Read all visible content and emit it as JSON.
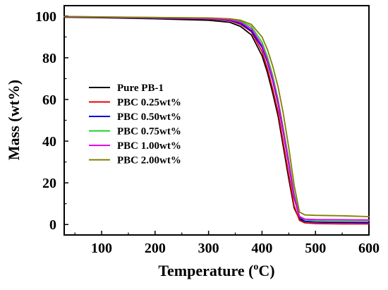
{
  "chart_data": {
    "type": "line",
    "title": "",
    "xlabel": "Temperature (",
    "xlabel_sup": "o",
    "xlabel_unit": "C)",
    "ylabel": "Mass (wt%)",
    "xlim": [
      30,
      600
    ],
    "ylim": [
      -5,
      105
    ],
    "xticks": [
      100,
      200,
      300,
      400,
      500,
      600
    ],
    "yticks": [
      0,
      20,
      40,
      60,
      80,
      100
    ],
    "grid": false,
    "legend_position": "center-left",
    "series": [
      {
        "name": "Pure PB-1",
        "color": "#000000",
        "points": [
          [
            30,
            99.5
          ],
          [
            100,
            99.2
          ],
          [
            200,
            98.7
          ],
          [
            300,
            98.0
          ],
          [
            340,
            97.0
          ],
          [
            360,
            95.0
          ],
          [
            380,
            91.0
          ],
          [
            400,
            81.0
          ],
          [
            410,
            73.0
          ],
          [
            420,
            63.0
          ],
          [
            430,
            52.0
          ],
          [
            440,
            37.0
          ],
          [
            450,
            22.0
          ],
          [
            460,
            8.0
          ],
          [
            470,
            2.5
          ],
          [
            480,
            1.5
          ],
          [
            500,
            1.2
          ],
          [
            550,
            1.0
          ],
          [
            600,
            1.0
          ]
        ]
      },
      {
        "name": "PBC 0.25wt%",
        "color": "#e8000b",
        "points": [
          [
            30,
            99.7
          ],
          [
            100,
            99.4
          ],
          [
            200,
            99.0
          ],
          [
            300,
            98.6
          ],
          [
            340,
            97.8
          ],
          [
            360,
            96.0
          ],
          [
            380,
            92.5
          ],
          [
            400,
            83.0
          ],
          [
            410,
            75.0
          ],
          [
            420,
            65.0
          ],
          [
            430,
            54.0
          ],
          [
            440,
            39.0
          ],
          [
            450,
            24.0
          ],
          [
            460,
            9.0
          ],
          [
            470,
            2.0
          ],
          [
            480,
            0.8
          ],
          [
            500,
            0.5
          ],
          [
            550,
            0.3
          ],
          [
            600,
            0.3
          ]
        ]
      },
      {
        "name": "PBC 0.50wt%",
        "color": "#0000e0",
        "points": [
          [
            30,
            99.7
          ],
          [
            100,
            99.4
          ],
          [
            200,
            99.0
          ],
          [
            300,
            98.7
          ],
          [
            340,
            98.0
          ],
          [
            360,
            96.5
          ],
          [
            380,
            93.0
          ],
          [
            400,
            85.0
          ],
          [
            410,
            78.0
          ],
          [
            420,
            69.0
          ],
          [
            430,
            58.0
          ],
          [
            440,
            44.0
          ],
          [
            450,
            29.0
          ],
          [
            460,
            13.0
          ],
          [
            470,
            3.5
          ],
          [
            480,
            1.5
          ],
          [
            500,
            1.2
          ],
          [
            550,
            1.1
          ],
          [
            600,
            1.0
          ]
        ]
      },
      {
        "name": "PBC 0.75wt%",
        "color": "#1fd12a",
        "points": [
          [
            30,
            99.8
          ],
          [
            100,
            99.6
          ],
          [
            200,
            99.3
          ],
          [
            300,
            99.0
          ],
          [
            340,
            98.5
          ],
          [
            360,
            97.5
          ],
          [
            380,
            95.0
          ],
          [
            400,
            87.5
          ],
          [
            410,
            80.5
          ],
          [
            420,
            71.5
          ],
          [
            430,
            60.0
          ],
          [
            440,
            46.0
          ],
          [
            450,
            31.0
          ],
          [
            460,
            15.0
          ],
          [
            470,
            4.0
          ],
          [
            480,
            2.2
          ],
          [
            500,
            2.0
          ],
          [
            550,
            1.9
          ],
          [
            600,
            1.9
          ]
        ]
      },
      {
        "name": "PBC 1.00wt%",
        "color": "#e800e8",
        "points": [
          [
            30,
            99.7
          ],
          [
            100,
            99.5
          ],
          [
            200,
            99.1
          ],
          [
            300,
            98.8
          ],
          [
            340,
            98.2
          ],
          [
            360,
            97.0
          ],
          [
            380,
            94.0
          ],
          [
            400,
            86.0
          ],
          [
            410,
            79.0
          ],
          [
            420,
            70.0
          ],
          [
            430,
            59.0
          ],
          [
            440,
            45.0
          ],
          [
            450,
            30.0
          ],
          [
            460,
            14.0
          ],
          [
            470,
            3.8
          ],
          [
            480,
            2.6
          ],
          [
            500,
            2.4
          ],
          [
            550,
            2.3
          ],
          [
            600,
            2.2
          ]
        ]
      },
      {
        "name": "PBC 2.00wt%",
        "color": "#808000",
        "points": [
          [
            30,
            99.8
          ],
          [
            100,
            99.6
          ],
          [
            200,
            99.3
          ],
          [
            300,
            99.1
          ],
          [
            340,
            98.7
          ],
          [
            360,
            98.0
          ],
          [
            380,
            96.0
          ],
          [
            400,
            90.0
          ],
          [
            410,
            84.0
          ],
          [
            420,
            76.0
          ],
          [
            430,
            66.0
          ],
          [
            440,
            53.0
          ],
          [
            450,
            37.0
          ],
          [
            460,
            19.0
          ],
          [
            470,
            6.0
          ],
          [
            480,
            4.6
          ],
          [
            500,
            4.4
          ],
          [
            550,
            4.2
          ],
          [
            600,
            3.8
          ]
        ]
      }
    ]
  }
}
